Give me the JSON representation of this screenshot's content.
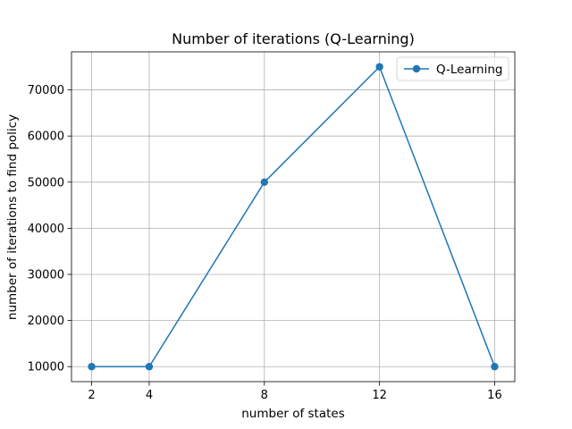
{
  "chart_data": {
    "type": "line",
    "title": "Number of iterations (Q-Learning)",
    "xlabel": "number of states",
    "ylabel": "number of iterations to find policy",
    "x": [
      2,
      4,
      8,
      12,
      16
    ],
    "x_ticks": [
      2,
      4,
      8,
      12,
      16
    ],
    "y_ticks": [
      10000,
      20000,
      30000,
      40000,
      50000,
      60000,
      70000
    ],
    "xlim": [
      1.3,
      16.7
    ],
    "ylim": [
      6750,
      78250
    ],
    "grid": true,
    "legend_position": "top-right",
    "series": [
      {
        "name": "Q-Learning",
        "values": [
          10000,
          10000,
          50000,
          75000,
          10000
        ],
        "color": "#1f77b4",
        "marker": "circle"
      }
    ]
  }
}
